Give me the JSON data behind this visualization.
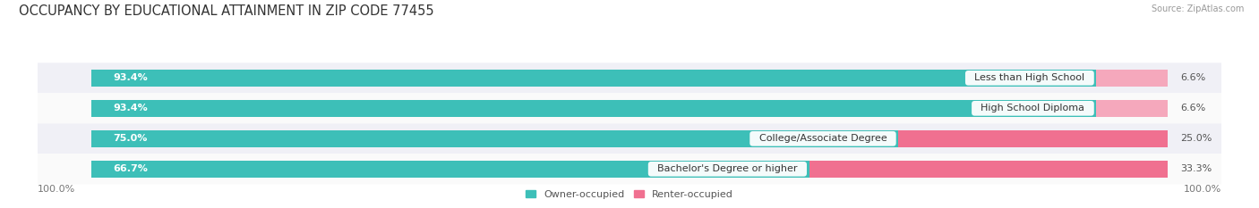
{
  "title": "OCCUPANCY BY EDUCATIONAL ATTAINMENT IN ZIP CODE 77455",
  "source": "Source: ZipAtlas.com",
  "categories": [
    "Less than High School",
    "High School Diploma",
    "College/Associate Degree",
    "Bachelor's Degree or higher"
  ],
  "owner_pct": [
    93.4,
    93.4,
    75.0,
    66.7
  ],
  "renter_pct": [
    6.6,
    6.6,
    25.0,
    33.3
  ],
  "owner_color": "#3DBFB8",
  "renter_color": "#F07090",
  "renter_color_light": "#F5A8BC",
  "bar_bg_color": "#E4E4EC",
  "row_bg_odd": "#F0F0F6",
  "row_bg_even": "#FAFAFA",
  "title_fontsize": 10.5,
  "label_fontsize": 8,
  "value_fontsize": 8,
  "legend_fontsize": 8,
  "axis_label_fontsize": 8,
  "background_color": "#FFFFFF"
}
